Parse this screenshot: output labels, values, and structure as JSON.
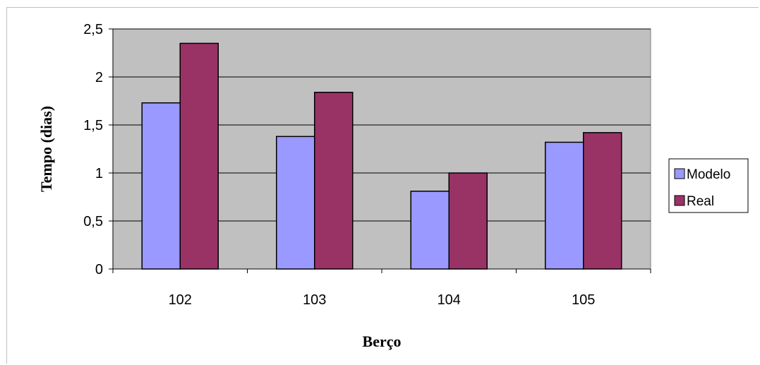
{
  "chart_data": {
    "type": "bar",
    "categories": [
      "102",
      "103",
      "104",
      "105"
    ],
    "series": [
      {
        "name": "Modelo",
        "values": [
          1.73,
          1.38,
          0.81,
          1.32
        ],
        "color": "#9999ff"
      },
      {
        "name": "Real",
        "values": [
          2.35,
          1.84,
          1.0,
          1.42
        ],
        "color": "#993366"
      }
    ],
    "xlabel": "Berço",
    "ylabel": "Tempo (dias)",
    "ylim": [
      0,
      2.5
    ],
    "yticks": [
      "0",
      "0,5",
      "1",
      "1,5",
      "2",
      "2,5"
    ],
    "ytick_values": [
      0,
      0.5,
      1,
      1.5,
      2,
      2.5
    ],
    "grid": true,
    "plot_background": "#c0c0c0",
    "legend_position": "right"
  }
}
